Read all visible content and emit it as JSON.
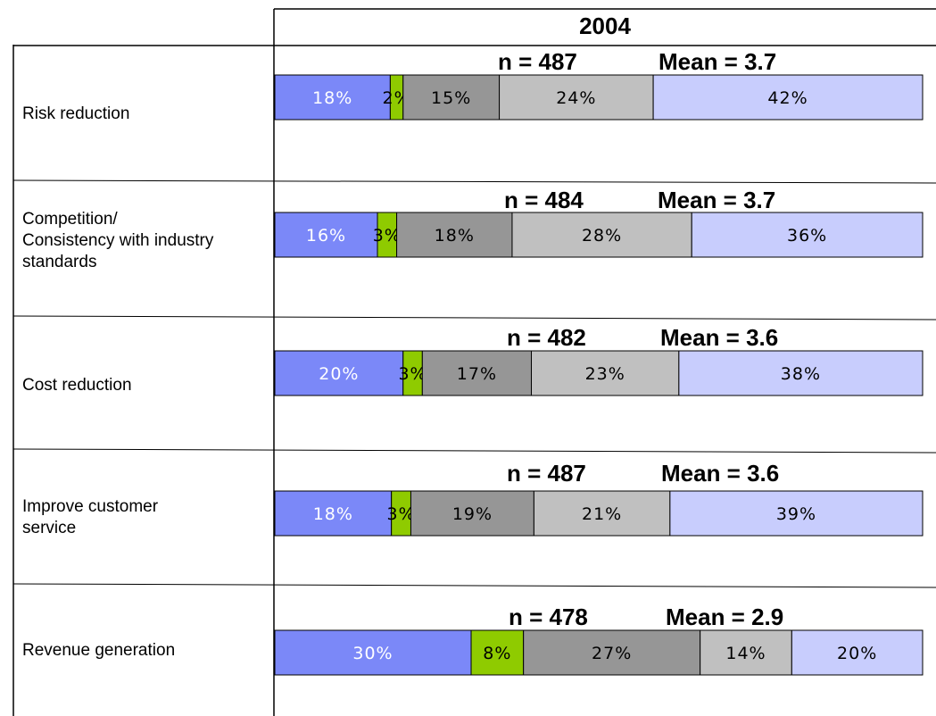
{
  "chart_data": {
    "type": "bar",
    "stacked": true,
    "orientation": "horizontal",
    "percent": true,
    "title": "2004",
    "categories": [
      "Risk reduction",
      "Competition/\nConsistency with industry\nstandards",
      "Cost reduction",
      "Improve customer\nservice",
      "Revenue generation"
    ],
    "segment_colors": [
      "#7b88f8",
      "#8fcb00",
      "#969696",
      "#c0c0c0",
      "#c8cdfd"
    ],
    "label_colors": [
      "#ffffff",
      "#000000",
      "#000000",
      "#000000",
      "#000000"
    ],
    "rows": [
      {
        "values": [
          18,
          2,
          15,
          24,
          42
        ],
        "labels": [
          "18%",
          "2%",
          "15%",
          "24%",
          "42%"
        ],
        "n": "n = 487",
        "mean": "Mean = 3.7"
      },
      {
        "values": [
          16,
          3,
          18,
          28,
          36
        ],
        "labels": [
          "16%",
          "3%",
          "18%",
          "28%",
          "36%"
        ],
        "n": "n = 484",
        "mean": "Mean = 3.7"
      },
      {
        "values": [
          20,
          3,
          17,
          23,
          38
        ],
        "labels": [
          "20%",
          "3%",
          "17%",
          "23%",
          "38%"
        ],
        "n": "n = 482",
        "mean": "Mean = 3.6"
      },
      {
        "values": [
          18,
          3,
          19,
          21,
          39
        ],
        "labels": [
          "18%",
          "3%",
          "19%",
          "21%",
          "39%"
        ],
        "n": "n = 487",
        "mean": "Mean = 3.6"
      },
      {
        "values": [
          30,
          8,
          27,
          14,
          20
        ],
        "labels": [
          "30%",
          "8%",
          "27%",
          "14%",
          "20%"
        ],
        "n": "n = 478",
        "mean": "Mean = 2.9"
      }
    ]
  }
}
